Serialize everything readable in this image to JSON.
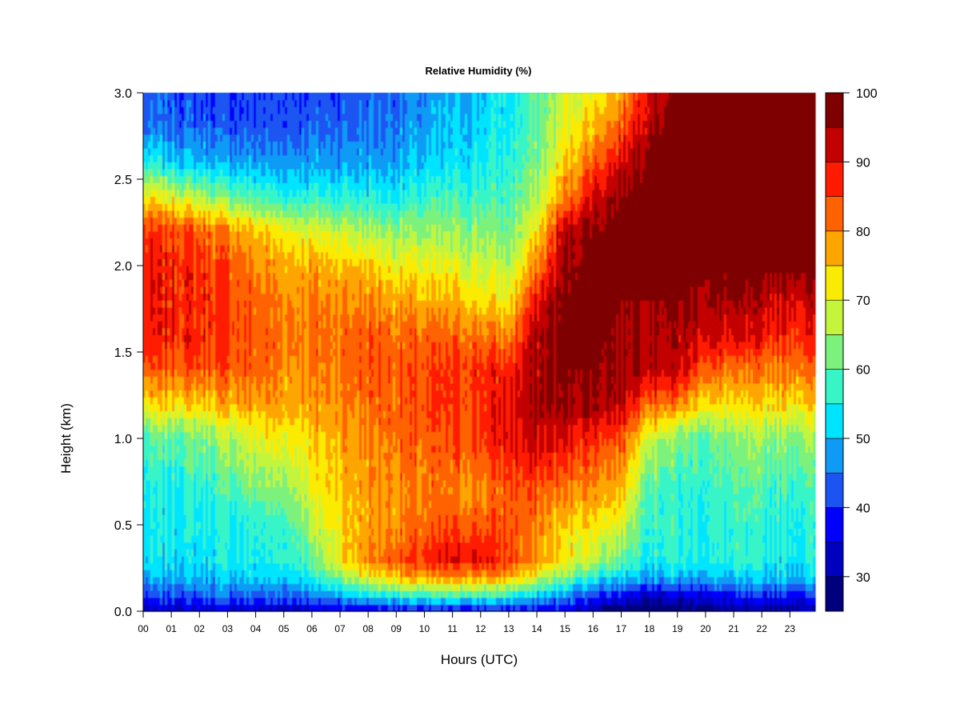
{
  "chart_data": {
    "type": "heatmap",
    "title": "Relative Humidity (%)",
    "xlabel": "Hours (UTC)",
    "ylabel": "Height (km)",
    "x_ticks": [
      "00",
      "01",
      "02",
      "03",
      "04",
      "05",
      "06",
      "07",
      "08",
      "09",
      "10",
      "11",
      "12",
      "13",
      "14",
      "15",
      "16",
      "17",
      "18",
      "19",
      "20",
      "21",
      "22",
      "23"
    ],
    "xlim": [
      0,
      23.9
    ],
    "ylim": [
      0,
      3.0
    ],
    "y_ticks": [
      0.0,
      0.5,
      1.0,
      1.5,
      2.0,
      2.5,
      3.0
    ],
    "y_tick_labels": [
      "0.0",
      "0.5",
      "1.0",
      "1.5",
      "2.0",
      "2.5",
      "3.0"
    ],
    "grid": false,
    "colorbar": {
      "levels": [
        25,
        30,
        35,
        40,
        45,
        50,
        55,
        60,
        65,
        70,
        75,
        80,
        85,
        90,
        95,
        100
      ],
      "colors": [
        "#00007F",
        "#0000BF",
        "#0000FF",
        "#1C54F2",
        "#0F9BF5",
        "#00E5FF",
        "#38F5C8",
        "#7CF27C",
        "#C4F53C",
        "#FAEB05",
        "#FFA500",
        "#FF6200",
        "#FF1A00",
        "#C20000",
        "#7F0000"
      ],
      "tick_values": [
        30,
        40,
        50,
        60,
        70,
        80,
        90,
        100
      ],
      "tick_labels": [
        "30",
        "40",
        "50",
        "60",
        "70",
        "80",
        "90",
        "100"
      ]
    },
    "grid_x_hours": [
      0,
      1,
      2,
      3,
      4,
      5,
      6,
      7,
      8,
      9,
      10,
      11,
      12,
      13,
      14,
      15,
      16,
      17,
      18,
      19,
      20,
      21,
      22,
      23
    ],
    "grid_y_km": [
      0.0,
      0.1,
      0.2,
      0.3,
      0.5,
      0.7,
      1.0,
      1.2,
      1.4,
      1.6,
      1.8,
      2.0,
      2.2,
      2.4,
      2.6,
      2.8,
      3.0
    ],
    "values_rh_pct": [
      [
        30,
        40,
        48,
        52,
        53,
        54,
        58,
        72,
        82,
        88,
        88,
        88,
        86,
        72,
        54,
        44,
        42
      ],
      [
        32,
        42,
        50,
        53,
        54,
        55,
        60,
        74,
        84,
        88,
        88,
        88,
        86,
        70,
        52,
        44,
        42
      ],
      [
        33,
        43,
        50,
        53,
        54,
        56,
        62,
        75,
        84,
        88,
        88,
        87,
        84,
        66,
        50,
        43,
        41
      ],
      [
        33,
        44,
        51,
        54,
        55,
        58,
        66,
        77,
        84,
        86,
        86,
        84,
        80,
        62,
        48,
        42,
        40
      ],
      [
        32,
        44,
        51,
        54,
        56,
        62,
        70,
        78,
        82,
        84,
        82,
        80,
        76,
        58,
        48,
        42,
        40
      ],
      [
        32,
        44,
        52,
        56,
        58,
        64,
        72,
        78,
        80,
        82,
        80,
        78,
        72,
        56,
        47,
        43,
        41
      ],
      [
        33,
        46,
        55,
        60,
        66,
        70,
        74,
        78,
        80,
        82,
        80,
        77,
        70,
        56,
        48,
        43,
        41
      ],
      [
        34,
        50,
        64,
        72,
        74,
        76,
        78,
        80,
        82,
        82,
        80,
        76,
        68,
        56,
        48,
        44,
        42
      ],
      [
        35,
        55,
        72,
        80,
        78,
        78,
        80,
        82,
        84,
        84,
        80,
        75,
        66,
        55,
        48,
        45,
        43
      ],
      [
        36,
        58,
        76,
        84,
        80,
        80,
        82,
        84,
        84,
        82,
        78,
        72,
        64,
        54,
        48,
        46,
        44
      ],
      [
        36,
        58,
        78,
        86,
        82,
        80,
        82,
        84,
        84,
        82,
        76,
        70,
        64,
        56,
        50,
        47,
        46
      ],
      [
        36,
        60,
        80,
        90,
        84,
        80,
        84,
        86,
        86,
        82,
        76,
        70,
        64,
        58,
        52,
        50,
        49
      ],
      [
        36,
        60,
        80,
        90,
        84,
        80,
        86,
        87,
        87,
        82,
        74,
        68,
        64,
        58,
        54,
        52,
        51
      ],
      [
        36,
        58,
        78,
        86,
        84,
        84,
        90,
        90,
        88,
        80,
        72,
        66,
        62,
        58,
        56,
        54,
        54
      ],
      [
        36,
        52,
        70,
        78,
        80,
        84,
        92,
        94,
        94,
        94,
        90,
        80,
        72,
        66,
        62,
        60,
        60
      ],
      [
        34,
        48,
        62,
        72,
        74,
        80,
        90,
        96,
        97,
        98,
        97,
        96,
        94,
        80,
        74,
        70,
        68
      ],
      [
        30,
        42,
        56,
        68,
        74,
        80,
        88,
        96,
        97,
        98,
        98,
        98,
        97,
        92,
        84,
        76,
        72
      ],
      [
        26,
        38,
        52,
        60,
        70,
        76,
        84,
        94,
        96,
        96,
        97,
        98,
        98,
        97,
        92,
        84,
        78
      ],
      [
        25,
        36,
        50,
        56,
        58,
        60,
        70,
        84,
        95,
        96,
        97,
        98,
        98,
        98,
        98,
        96,
        92
      ],
      [
        25,
        36,
        50,
        55,
        56,
        56,
        62,
        80,
        92,
        94,
        97,
        98,
        98,
        98,
        98,
        98,
        98
      ],
      [
        27,
        37,
        50,
        55,
        56,
        57,
        60,
        74,
        84,
        92,
        96,
        98,
        98,
        98,
        98,
        98,
        98
      ],
      [
        28,
        38,
        50,
        55,
        56,
        58,
        62,
        72,
        80,
        90,
        94,
        98,
        98,
        98,
        98,
        98,
        98
      ],
      [
        29,
        39,
        51,
        55,
        56,
        58,
        64,
        74,
        80,
        88,
        93,
        98,
        98,
        98,
        98,
        98,
        98
      ],
      [
        30,
        40,
        51,
        55,
        56,
        58,
        64,
        74,
        82,
        88,
        92,
        98,
        98,
        98,
        98,
        98,
        98
      ]
    ]
  }
}
